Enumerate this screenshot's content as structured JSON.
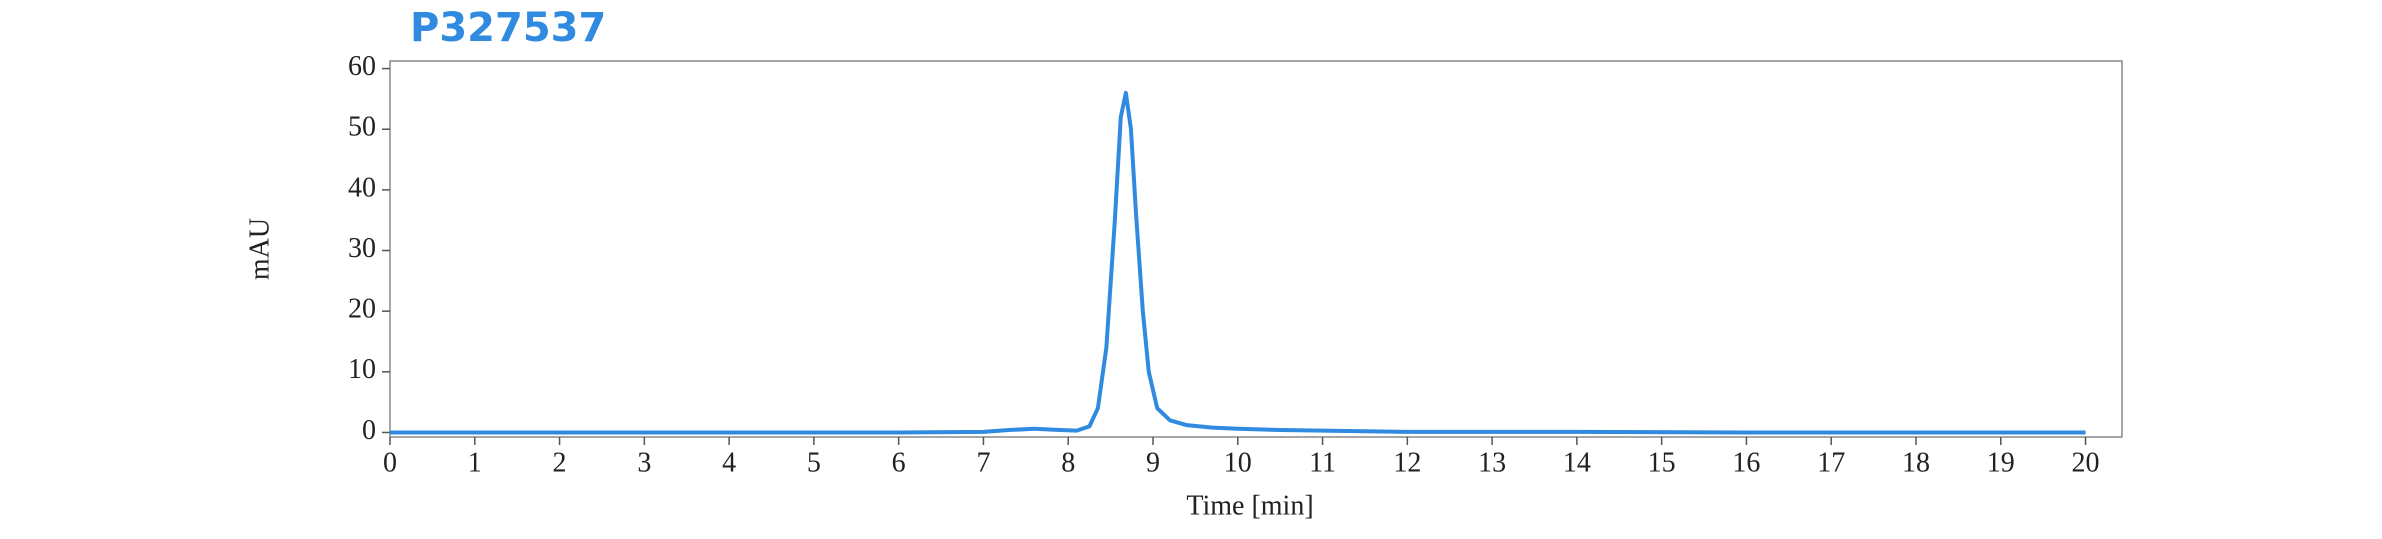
{
  "chart_data": {
    "type": "line",
    "title": "P327537",
    "x_label": "Time [min]",
    "y_label": "mAU",
    "x": [
      0,
      2,
      4,
      6,
      7,
      7.3,
      7.6,
      7.9,
      8.1,
      8.25,
      8.35,
      8.45,
      8.55,
      8.62,
      8.68,
      8.74,
      8.8,
      8.88,
      8.95,
      9.05,
      9.2,
      9.4,
      9.7,
      10,
      10.5,
      11,
      12,
      14,
      16,
      18,
      20
    ],
    "series": [
      {
        "color": "#2f8ae0",
        "values": [
          0,
          0,
          0,
          0,
          0.1,
          0.4,
          0.6,
          0.4,
          0.3,
          1,
          4,
          14,
          35,
          52,
          56,
          50,
          36,
          20,
          10,
          4,
          2,
          1.2,
          0.8,
          0.6,
          0.4,
          0.3,
          0.1,
          0.1,
          0,
          0,
          0
        ]
      }
    ],
    "xlim": [
      0,
      20.43
    ],
    "ylim": [
      -0.75,
      61.25
    ],
    "xticks": [
      0,
      1,
      2,
      3,
      4,
      5,
      6,
      7,
      8,
      9,
      10,
      11,
      12,
      13,
      14,
      15,
      16,
      17,
      18,
      19,
      20
    ],
    "yticks": [
      0,
      10,
      20,
      30,
      40,
      50,
      60
    ]
  }
}
